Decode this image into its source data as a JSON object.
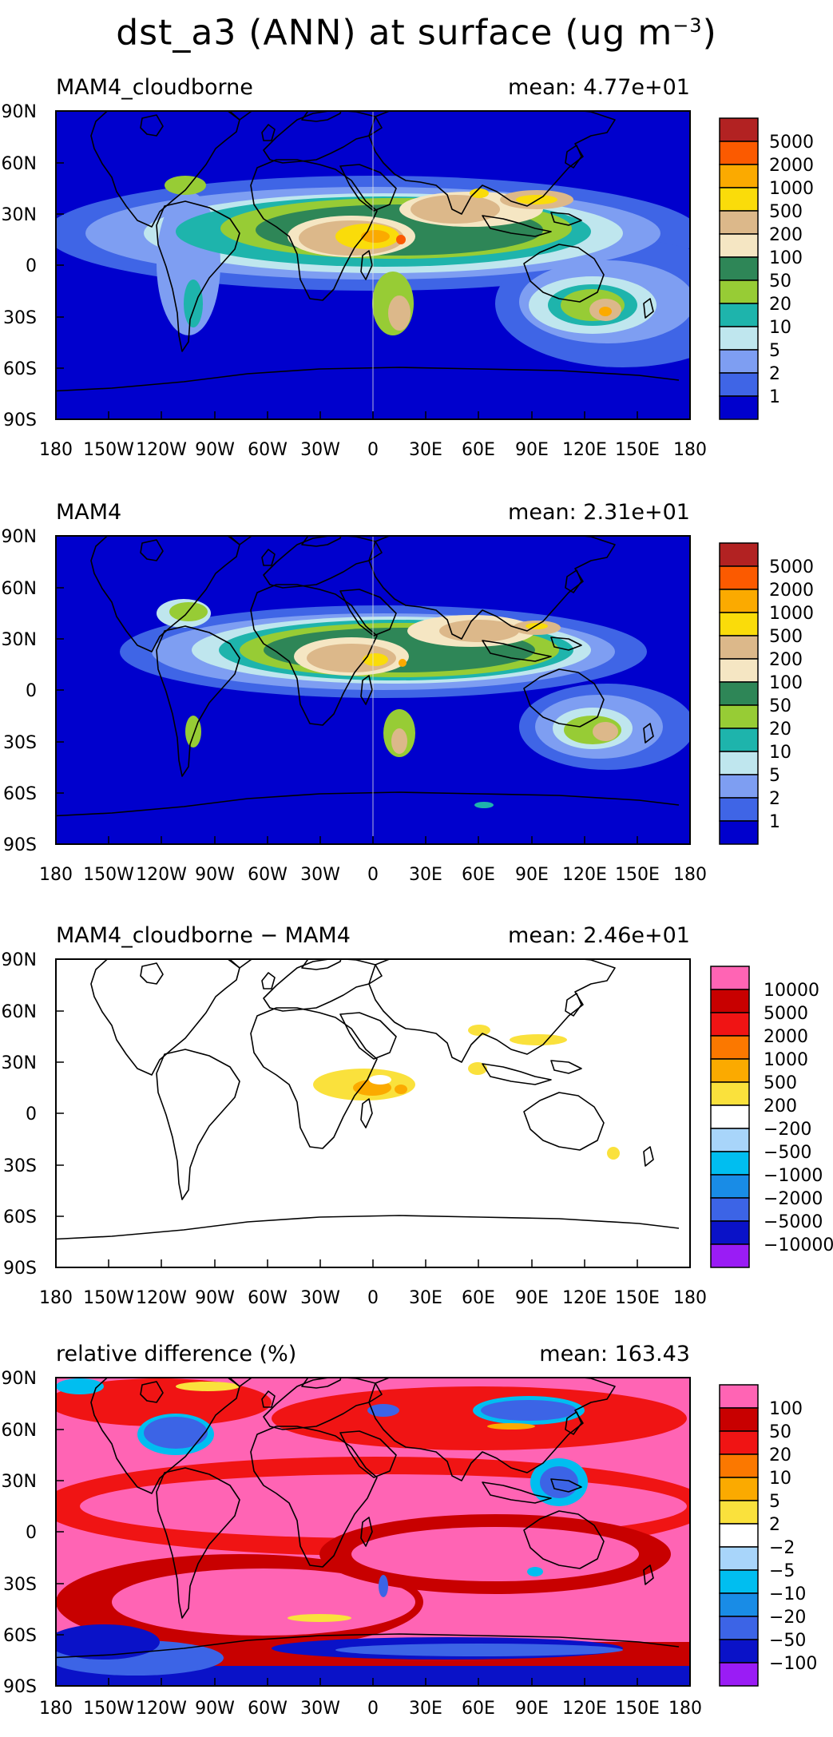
{
  "title": {
    "variable": "dst_a3",
    "rest": " (ANN) at surface (ug m",
    "exponent": "−3",
    "close": ")"
  },
  "colors": {
    "seq": [
      "#0000cd",
      "#3f65e6",
      "#7e9ef2",
      "#bfe6ee",
      "#1eb4ac",
      "#97cc35",
      "#2e8657",
      "#f5e6c3",
      "#dcb88a",
      "#fadc0a",
      "#fbaa00",
      "#fb5a00",
      "#b22222"
    ],
    "div": [
      "#9a1cf5",
      "#0a12c8",
      "#3c64e6",
      "#198ce6",
      "#00bef0",
      "#a8d5fa",
      "#ffffff",
      "#fae13c",
      "#fbaa00",
      "#fb7800",
      "#f01414",
      "#c80000",
      "#ff64b4"
    ]
  },
  "panels": [
    {
      "left_title": "MAM4_cloudborne",
      "right_title": "mean: 4.77e+01",
      "colorbar_labels": [
        "5000",
        "2000",
        "1000",
        "500",
        "200",
        "100",
        "50",
        "20",
        "10",
        "5",
        "2",
        "1"
      ],
      "lat_labels": [
        "90N",
        "60N",
        "30N",
        "0",
        "30S",
        "60S",
        "90S"
      ],
      "lon_labels": [
        "180",
        "150W",
        "120W",
        "90W",
        "60W",
        "30W",
        "0",
        "30E",
        "60E",
        "90E",
        "120E",
        "150E",
        "180"
      ]
    },
    {
      "left_title": "MAM4",
      "right_title": "mean: 2.31e+01",
      "colorbar_labels": [
        "5000",
        "2000",
        "1000",
        "500",
        "200",
        "100",
        "50",
        "20",
        "10",
        "5",
        "2",
        "1"
      ],
      "lat_labels": [
        "90N",
        "60N",
        "30N",
        "0",
        "30S",
        "60S",
        "90S"
      ],
      "lon_labels": [
        "180",
        "150W",
        "120W",
        "90W",
        "60W",
        "30W",
        "0",
        "30E",
        "60E",
        "90E",
        "120E",
        "150E",
        "180"
      ]
    },
    {
      "left_title": "MAM4_cloudborne − MAM4",
      "right_title": "mean: 2.46e+01",
      "colorbar_labels": [
        "10000",
        "5000",
        "2000",
        "1000",
        "500",
        "200",
        "−200",
        "−500",
        "−1000",
        "−2000",
        "−5000",
        "−10000"
      ],
      "lat_labels": [
        "90N",
        "60N",
        "30N",
        "0",
        "30S",
        "60S",
        "90S"
      ],
      "lon_labels": [
        "180",
        "150W",
        "120W",
        "90W",
        "60W",
        "30W",
        "0",
        "30E",
        "60E",
        "90E",
        "120E",
        "150E",
        "180"
      ]
    },
    {
      "left_title": "relative difference (%)",
      "right_title": "mean: 163.43",
      "colorbar_labels": [
        "100",
        "50",
        "20",
        "10",
        "5",
        "2",
        "−2",
        "−5",
        "−10",
        "−20",
        "−50",
        "−100"
      ],
      "lat_labels": [
        "90N",
        "60N",
        "30N",
        "0",
        "30S",
        "60S",
        "90S"
      ],
      "lon_labels": [
        "180",
        "150W",
        "120W",
        "90W",
        "60W",
        "30W",
        "0",
        "30E",
        "60E",
        "90E",
        "120E",
        "150E",
        "180"
      ]
    }
  ]
}
